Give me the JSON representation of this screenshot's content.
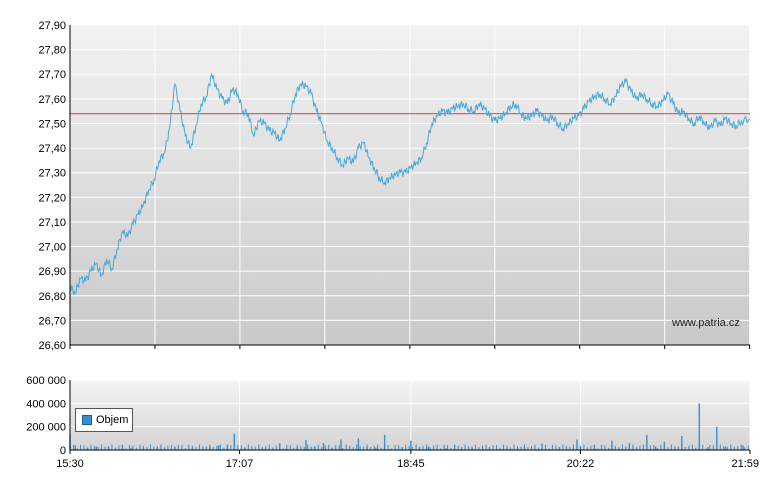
{
  "chart_data": [
    {
      "type": "line",
      "title": "",
      "xlabel": "",
      "ylabel": "",
      "ylim": [
        26.6,
        27.9
      ],
      "y_ticks": [
        "27,90",
        "27,80",
        "27,70",
        "27,60",
        "27,50",
        "27,40",
        "27,30",
        "27,20",
        "27,10",
        "27,00",
        "26,90",
        "26,80",
        "26,70",
        "26,60"
      ],
      "reference_line": 27.54,
      "reference_color": "#e06060",
      "line_color": "#4aa8d8",
      "grid": true,
      "x_range": [
        "15:30",
        "21:59"
      ],
      "series": [
        {
          "points": [
            [
              "15:30",
              26.84
            ],
            [
              "15:33",
              26.81
            ],
            [
              "15:36",
              26.87
            ],
            [
              "15:39",
              26.86
            ],
            [
              "15:42",
              26.9
            ],
            [
              "15:45",
              26.93
            ],
            [
              "15:48",
              26.88
            ],
            [
              "15:51",
              26.95
            ],
            [
              "15:54",
              26.91
            ],
            [
              "15:57",
              26.99
            ],
            [
              "16:00",
              27.06
            ],
            [
              "16:03",
              27.04
            ],
            [
              "16:06",
              27.09
            ],
            [
              "16:09",
              27.13
            ],
            [
              "16:12",
              27.17
            ],
            [
              "16:15",
              27.23
            ],
            [
              "16:18",
              27.27
            ],
            [
              "16:21",
              27.35
            ],
            [
              "16:24",
              27.38
            ],
            [
              "16:27",
              27.48
            ],
            [
              "16:30",
              27.66
            ],
            [
              "16:33",
              27.55
            ],
            [
              "16:36",
              27.45
            ],
            [
              "16:39",
              27.4
            ],
            [
              "16:42",
              27.49
            ],
            [
              "16:45",
              27.58
            ],
            [
              "16:48",
              27.61
            ],
            [
              "16:51",
              27.7
            ],
            [
              "16:54",
              27.64
            ],
            [
              "16:57",
              27.6
            ],
            [
              "17:00",
              27.58
            ],
            [
              "17:03",
              27.64
            ],
            [
              "17:06",
              27.62
            ],
            [
              "17:09",
              27.55
            ],
            [
              "17:12",
              27.54
            ],
            [
              "17:15",
              27.45
            ],
            [
              "17:18",
              27.51
            ],
            [
              "17:21",
              27.5
            ],
            [
              "17:24",
              27.47
            ],
            [
              "17:27",
              27.46
            ],
            [
              "17:30",
              27.43
            ],
            [
              "17:33",
              27.48
            ],
            [
              "17:36",
              27.54
            ],
            [
              "17:39",
              27.62
            ],
            [
              "17:42",
              27.66
            ],
            [
              "17:45",
              27.65
            ],
            [
              "17:48",
              27.62
            ],
            [
              "17:51",
              27.55
            ],
            [
              "17:54",
              27.5
            ],
            [
              "17:57",
              27.43
            ],
            [
              "18:00",
              27.4
            ],
            [
              "18:03",
              27.36
            ],
            [
              "18:06",
              27.33
            ],
            [
              "18:09",
              27.36
            ],
            [
              "18:12",
              27.34
            ],
            [
              "18:15",
              27.4
            ],
            [
              "18:18",
              27.42
            ],
            [
              "18:21",
              27.36
            ],
            [
              "18:24",
              27.32
            ],
            [
              "18:27",
              27.28
            ],
            [
              "18:30",
              27.26
            ],
            [
              "18:33",
              27.28
            ],
            [
              "18:36",
              27.29
            ],
            [
              "18:39",
              27.3
            ],
            [
              "18:42",
              27.3
            ],
            [
              "18:45",
              27.32
            ],
            [
              "18:48",
              27.34
            ],
            [
              "18:51",
              27.36
            ],
            [
              "18:54",
              27.42
            ],
            [
              "18:57",
              27.5
            ],
            [
              "19:00",
              27.53
            ],
            [
              "19:03",
              27.55
            ],
            [
              "19:06",
              27.54
            ],
            [
              "19:09",
              27.56
            ],
            [
              "19:12",
              27.57
            ],
            [
              "19:15",
              27.58
            ],
            [
              "19:18",
              27.56
            ],
            [
              "19:21",
              27.55
            ],
            [
              "19:24",
              27.58
            ],
            [
              "19:27",
              27.56
            ],
            [
              "19:30",
              27.53
            ],
            [
              "19:33",
              27.51
            ],
            [
              "19:36",
              27.52
            ],
            [
              "19:39",
              27.54
            ],
            [
              "19:42",
              27.57
            ],
            [
              "19:45",
              27.58
            ],
            [
              "19:48",
              27.54
            ],
            [
              "19:51",
              27.52
            ],
            [
              "19:54",
              27.53
            ],
            [
              "19:57",
              27.55
            ],
            [
              "20:00",
              27.53
            ],
            [
              "20:03",
              27.51
            ],
            [
              "20:06",
              27.53
            ],
            [
              "20:09",
              27.5
            ],
            [
              "20:12",
              27.48
            ],
            [
              "20:15",
              27.5
            ],
            [
              "20:18",
              27.52
            ],
            [
              "20:21",
              27.53
            ],
            [
              "20:24",
              27.56
            ],
            [
              "20:27",
              27.59
            ],
            [
              "20:30",
              27.61
            ],
            [
              "20:33",
              27.62
            ],
            [
              "20:36",
              27.6
            ],
            [
              "20:39",
              27.58
            ],
            [
              "20:42",
              27.61
            ],
            [
              "20:45",
              27.65
            ],
            [
              "20:48",
              27.67
            ],
            [
              "20:51",
              27.63
            ],
            [
              "20:54",
              27.6
            ],
            [
              "20:57",
              27.62
            ],
            [
              "21:00",
              27.6
            ],
            [
              "21:03",
              27.58
            ],
            [
              "21:06",
              27.57
            ],
            [
              "21:09",
              27.59
            ],
            [
              "21:12",
              27.62
            ],
            [
              "21:15",
              27.58
            ],
            [
              "21:18",
              27.54
            ],
            [
              "21:21",
              27.55
            ],
            [
              "21:24",
              27.52
            ],
            [
              "21:27",
              27.5
            ],
            [
              "21:30",
              27.53
            ],
            [
              "21:33",
              27.5
            ],
            [
              "21:36",
              27.48
            ],
            [
              "21:39",
              27.51
            ],
            [
              "21:42",
              27.49
            ],
            [
              "21:45",
              27.52
            ],
            [
              "21:48",
              27.5
            ],
            [
              "21:51",
              27.49
            ],
            [
              "21:54",
              27.51
            ],
            [
              "21:59",
              27.52
            ]
          ]
        }
      ]
    },
    {
      "type": "bar",
      "title": "",
      "xlabel": "",
      "ylabel": "",
      "ylim": [
        0,
        600000
      ],
      "y_ticks": [
        "600 000",
        "400 000",
        "200 000",
        "0"
      ],
      "x_ticks": [
        "15:30",
        "17:07",
        "18:45",
        "20:22",
        "21:59"
      ],
      "x_range": [
        "15:30",
        "21:59"
      ],
      "bar_color": "#3b8fd1",
      "grid": true,
      "series": [
        {
          "name": "Objem",
          "points": [
            [
              "15:30",
              130000
            ],
            [
              "15:33",
              40000
            ],
            [
              "15:40",
              22000
            ],
            [
              "15:45",
              30000
            ],
            [
              "15:52",
              25000
            ],
            [
              "16:00",
              45000
            ],
            [
              "16:05",
              20000
            ],
            [
              "16:12",
              15000
            ],
            [
              "16:20",
              20000
            ],
            [
              "16:30",
              30000
            ],
            [
              "16:40",
              18000
            ],
            [
              "16:50",
              35000
            ],
            [
              "16:55",
              40000
            ],
            [
              "17:00",
              45000
            ],
            [
              "17:04",
              140000
            ],
            [
              "17:10",
              20000
            ],
            [
              "17:20",
              15000
            ],
            [
              "17:30",
              60000
            ],
            [
              "17:40",
              25000
            ],
            [
              "17:45",
              85000
            ],
            [
              "17:50",
              30000
            ],
            [
              "17:55",
              60000
            ],
            [
              "18:00",
              20000
            ],
            [
              "18:05",
              90000
            ],
            [
              "18:15",
              100000
            ],
            [
              "18:20",
              25000
            ],
            [
              "18:25",
              20000
            ],
            [
              "18:30",
              130000
            ],
            [
              "18:40",
              25000
            ],
            [
              "18:45",
              80000
            ],
            [
              "18:50",
              20000
            ],
            [
              "18:55",
              30000
            ],
            [
              "19:05",
              15000
            ],
            [
              "19:10",
              40000
            ],
            [
              "19:20",
              20000
            ],
            [
              "19:30",
              25000
            ],
            [
              "19:40",
              15000
            ],
            [
              "19:50",
              30000
            ],
            [
              "20:00",
              55000
            ],
            [
              "20:10",
              25000
            ],
            [
              "20:20",
              90000
            ],
            [
              "20:22",
              30000
            ],
            [
              "20:30",
              45000
            ],
            [
              "20:40",
              80000
            ],
            [
              "20:50",
              60000
            ],
            [
              "21:00",
              130000
            ],
            [
              "21:05",
              30000
            ],
            [
              "21:10",
              70000
            ],
            [
              "21:20",
              120000
            ],
            [
              "21:30",
              400000
            ],
            [
              "21:35",
              25000
            ],
            [
              "21:40",
              200000
            ],
            [
              "21:45",
              30000
            ],
            [
              "21:55",
              40000
            ]
          ]
        }
      ]
    }
  ],
  "legend": {
    "label": "Objem"
  },
  "watermark": "www.patria.cz"
}
